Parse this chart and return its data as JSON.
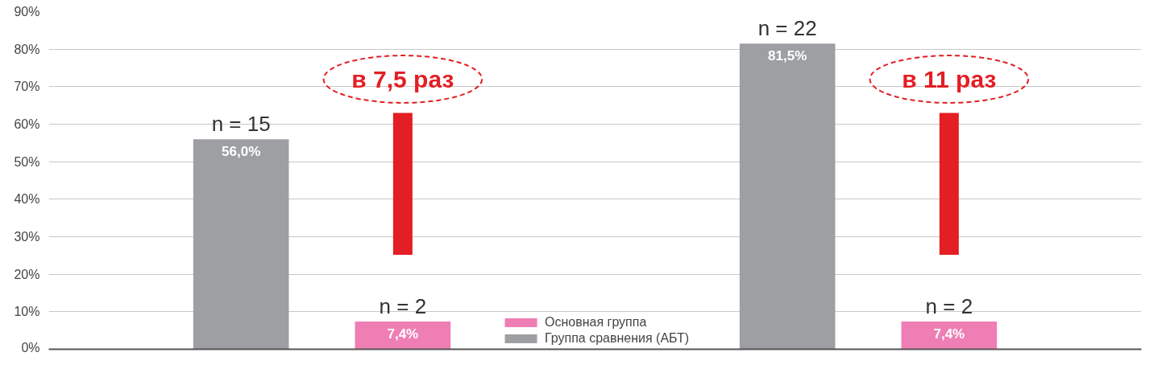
{
  "chart_data": {
    "type": "bar",
    "categories": [
      null,
      null
    ],
    "series": [
      {
        "name": "Группа сравнения (АБТ)",
        "color": "#9d9fa2",
        "values": [
          56.0,
          81.5
        ],
        "value_labels": [
          "56,0%",
          "81,5%"
        ]
      },
      {
        "name": "Основная группа",
        "color": "#ee7eb4",
        "values": [
          7.4,
          7.4
        ],
        "value_labels": [
          "7,4%",
          "7,4%"
        ]
      }
    ],
    "ylim": [
      0,
      90
    ],
    "yticks": [
      {
        "value": 0,
        "label": "0%"
      },
      {
        "value": 10,
        "label": "10%"
      },
      {
        "value": 20,
        "label": "20%"
      },
      {
        "value": 30,
        "label": "30%"
      },
      {
        "value": 40,
        "label": "40%"
      },
      {
        "value": 50,
        "label": "50%"
      },
      {
        "value": 60,
        "label": "60%"
      },
      {
        "value": 70,
        "label": "70%"
      },
      {
        "value": 80,
        "label": "80%"
      },
      {
        "value": 90,
        "label": "90%"
      }
    ],
    "grid": "y",
    "legend": "bottom",
    "annotations": [
      "n = 15",
      "n = 2",
      "n = 22",
      "n = 2",
      "в 7,5 раз",
      "в 11 раз"
    ]
  }
}
